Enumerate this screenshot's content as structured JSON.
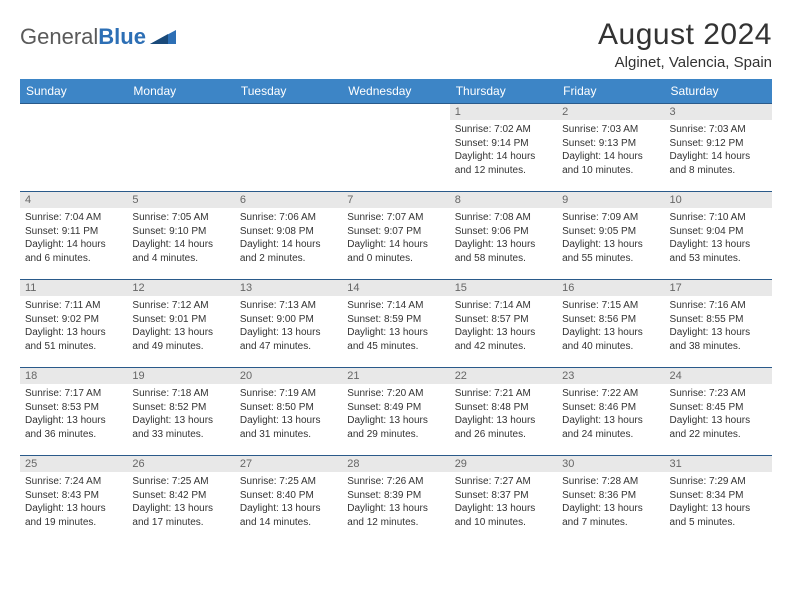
{
  "logo": {
    "text1": "General",
    "text2": "Blue"
  },
  "title": "August 2024",
  "location": "Alginet, Valencia, Spain",
  "header_bg": "#3d85c6",
  "border_color": "#2a5a8a",
  "daynum_bg": "#e8e8e8",
  "day_names": [
    "Sunday",
    "Monday",
    "Tuesday",
    "Wednesday",
    "Thursday",
    "Friday",
    "Saturday"
  ],
  "weeks": [
    [
      null,
      null,
      null,
      null,
      {
        "n": "1",
        "sr": "7:02 AM",
        "ss": "9:14 PM",
        "dl": "14 hours and 12 minutes."
      },
      {
        "n": "2",
        "sr": "7:03 AM",
        "ss": "9:13 PM",
        "dl": "14 hours and 10 minutes."
      },
      {
        "n": "3",
        "sr": "7:03 AM",
        "ss": "9:12 PM",
        "dl": "14 hours and 8 minutes."
      }
    ],
    [
      {
        "n": "4",
        "sr": "7:04 AM",
        "ss": "9:11 PM",
        "dl": "14 hours and 6 minutes."
      },
      {
        "n": "5",
        "sr": "7:05 AM",
        "ss": "9:10 PM",
        "dl": "14 hours and 4 minutes."
      },
      {
        "n": "6",
        "sr": "7:06 AM",
        "ss": "9:08 PM",
        "dl": "14 hours and 2 minutes."
      },
      {
        "n": "7",
        "sr": "7:07 AM",
        "ss": "9:07 PM",
        "dl": "14 hours and 0 minutes."
      },
      {
        "n": "8",
        "sr": "7:08 AM",
        "ss": "9:06 PM",
        "dl": "13 hours and 58 minutes."
      },
      {
        "n": "9",
        "sr": "7:09 AM",
        "ss": "9:05 PM",
        "dl": "13 hours and 55 minutes."
      },
      {
        "n": "10",
        "sr": "7:10 AM",
        "ss": "9:04 PM",
        "dl": "13 hours and 53 minutes."
      }
    ],
    [
      {
        "n": "11",
        "sr": "7:11 AM",
        "ss": "9:02 PM",
        "dl": "13 hours and 51 minutes."
      },
      {
        "n": "12",
        "sr": "7:12 AM",
        "ss": "9:01 PM",
        "dl": "13 hours and 49 minutes."
      },
      {
        "n": "13",
        "sr": "7:13 AM",
        "ss": "9:00 PM",
        "dl": "13 hours and 47 minutes."
      },
      {
        "n": "14",
        "sr": "7:14 AM",
        "ss": "8:59 PM",
        "dl": "13 hours and 45 minutes."
      },
      {
        "n": "15",
        "sr": "7:14 AM",
        "ss": "8:57 PM",
        "dl": "13 hours and 42 minutes."
      },
      {
        "n": "16",
        "sr": "7:15 AM",
        "ss": "8:56 PM",
        "dl": "13 hours and 40 minutes."
      },
      {
        "n": "17",
        "sr": "7:16 AM",
        "ss": "8:55 PM",
        "dl": "13 hours and 38 minutes."
      }
    ],
    [
      {
        "n": "18",
        "sr": "7:17 AM",
        "ss": "8:53 PM",
        "dl": "13 hours and 36 minutes."
      },
      {
        "n": "19",
        "sr": "7:18 AM",
        "ss": "8:52 PM",
        "dl": "13 hours and 33 minutes."
      },
      {
        "n": "20",
        "sr": "7:19 AM",
        "ss": "8:50 PM",
        "dl": "13 hours and 31 minutes."
      },
      {
        "n": "21",
        "sr": "7:20 AM",
        "ss": "8:49 PM",
        "dl": "13 hours and 29 minutes."
      },
      {
        "n": "22",
        "sr": "7:21 AM",
        "ss": "8:48 PM",
        "dl": "13 hours and 26 minutes."
      },
      {
        "n": "23",
        "sr": "7:22 AM",
        "ss": "8:46 PM",
        "dl": "13 hours and 24 minutes."
      },
      {
        "n": "24",
        "sr": "7:23 AM",
        "ss": "8:45 PM",
        "dl": "13 hours and 22 minutes."
      }
    ],
    [
      {
        "n": "25",
        "sr": "7:24 AM",
        "ss": "8:43 PM",
        "dl": "13 hours and 19 minutes."
      },
      {
        "n": "26",
        "sr": "7:25 AM",
        "ss": "8:42 PM",
        "dl": "13 hours and 17 minutes."
      },
      {
        "n": "27",
        "sr": "7:25 AM",
        "ss": "8:40 PM",
        "dl": "13 hours and 14 minutes."
      },
      {
        "n": "28",
        "sr": "7:26 AM",
        "ss": "8:39 PM",
        "dl": "13 hours and 12 minutes."
      },
      {
        "n": "29",
        "sr": "7:27 AM",
        "ss": "8:37 PM",
        "dl": "13 hours and 10 minutes."
      },
      {
        "n": "30",
        "sr": "7:28 AM",
        "ss": "8:36 PM",
        "dl": "13 hours and 7 minutes."
      },
      {
        "n": "31",
        "sr": "7:29 AM",
        "ss": "8:34 PM",
        "dl": "13 hours and 5 minutes."
      }
    ]
  ],
  "labels": {
    "sunrise": "Sunrise:",
    "sunset": "Sunset:",
    "daylight": "Daylight:"
  }
}
